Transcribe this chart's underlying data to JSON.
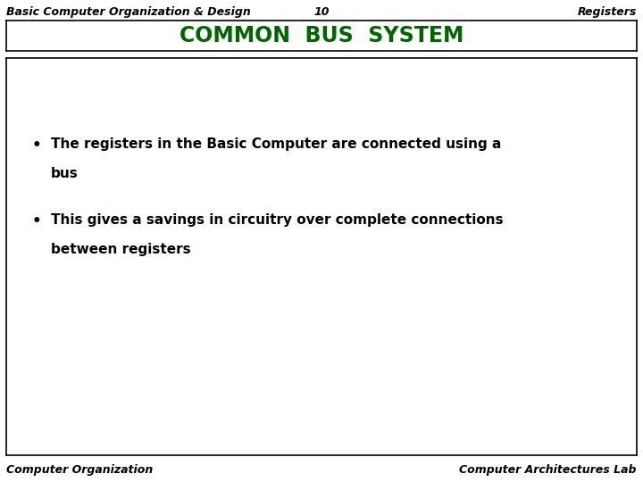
{
  "top_left_text": "Basic Computer Organization & Design",
  "top_center_text": "10",
  "top_right_text": "Registers",
  "title_text": "COMMON  BUS  SYSTEM",
  "title_color": "#006400",
  "bullet1_line1": "The registers in the Basic Computer are connected using a",
  "bullet1_line2": "bus",
  "bullet2_line1": "This gives a savings in circuitry over complete connections",
  "bullet2_line2": "between registers",
  "bottom_left_text": "Computer Organization",
  "bottom_right_text": "Computer Architectures Lab",
  "bg_color": "#ffffff",
  "border_color": "#000000",
  "text_color": "#000000",
  "header_font_size": 9,
  "title_font_size": 17,
  "bullet_font_size": 11,
  "footer_font_size": 9
}
